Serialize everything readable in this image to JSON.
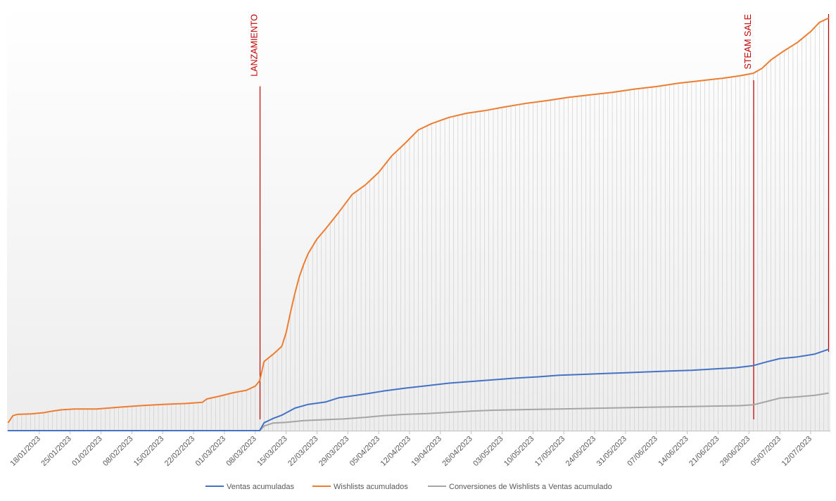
{
  "chart_data": {
    "type": "line",
    "title": "",
    "xlabel": "",
    "ylabel": "",
    "x_start": "2023-01-11",
    "x_end": "2023-07-16",
    "ylim": [
      0,
      1
    ],
    "x_tick_labels": [
      "18/01/2023",
      "25/01/2023",
      "01/02/2023",
      "08/02/2023",
      "15/02/2023",
      "22/02/2023",
      "01/03/2023",
      "08/03/2023",
      "15/03/2023",
      "22/03/2023",
      "29/03/2023",
      "05/04/2023",
      "12/04/2023",
      "19/04/2023",
      "26/04/2023",
      "03/05/2023",
      "10/05/2023",
      "17/05/2023",
      "24/05/2023",
      "31/05/2023",
      "07/06/2023",
      "14/06/2023",
      "21/06/2023",
      "28/06/2023",
      "05/07/2023",
      "12/07/2023"
    ],
    "grid": "vertical dropline per day",
    "legend_position": "bottom",
    "series": [
      {
        "name": "Ventas acumuladas",
        "color": "#4472c4",
        "points": [
          [
            "2023-01-11",
            0
          ],
          [
            "2023-03-09",
            0
          ],
          [
            "2023-03-10",
            0.019
          ],
          [
            "2023-03-12",
            0.029
          ],
          [
            "2023-03-14",
            0.037
          ],
          [
            "2023-03-17",
            0.054
          ],
          [
            "2023-03-20",
            0.063
          ],
          [
            "2023-03-24",
            0.069
          ],
          [
            "2023-03-27",
            0.079
          ],
          [
            "2023-04-02",
            0.088
          ],
          [
            "2023-04-06",
            0.095
          ],
          [
            "2023-04-11",
            0.102
          ],
          [
            "2023-04-16",
            0.108
          ],
          [
            "2023-04-21",
            0.114
          ],
          [
            "2023-04-26",
            0.118
          ],
          [
            "2023-05-01",
            0.122
          ],
          [
            "2023-05-06",
            0.126
          ],
          [
            "2023-05-11",
            0.129
          ],
          [
            "2023-05-16",
            0.133
          ],
          [
            "2023-05-21",
            0.135
          ],
          [
            "2023-05-26",
            0.137
          ],
          [
            "2023-05-31",
            0.139
          ],
          [
            "2023-06-05",
            0.141
          ],
          [
            "2023-06-10",
            0.143
          ],
          [
            "2023-06-15",
            0.145
          ],
          [
            "2023-06-20",
            0.148
          ],
          [
            "2023-06-25",
            0.151
          ],
          [
            "2023-06-29",
            0.156
          ],
          [
            "2023-07-02",
            0.165
          ],
          [
            "2023-07-05",
            0.173
          ],
          [
            "2023-07-09",
            0.177
          ],
          [
            "2023-07-13",
            0.184
          ],
          [
            "2023-07-16",
            0.195
          ]
        ]
      },
      {
        "name": "Wishlists acumulados",
        "color": "#ed7d31",
        "points": [
          [
            "2023-01-11",
            0.02
          ],
          [
            "2023-01-12",
            0.036
          ],
          [
            "2023-01-13",
            0.039
          ],
          [
            "2023-01-16",
            0.04
          ],
          [
            "2023-01-19",
            0.043
          ],
          [
            "2023-01-21",
            0.047
          ],
          [
            "2023-01-23",
            0.05
          ],
          [
            "2023-01-26",
            0.052
          ],
          [
            "2023-01-31",
            0.052
          ],
          [
            "2023-02-05",
            0.056
          ],
          [
            "2023-02-10",
            0.06
          ],
          [
            "2023-02-15",
            0.063
          ],
          [
            "2023-02-20",
            0.065
          ],
          [
            "2023-02-24",
            0.068
          ],
          [
            "2023-02-25",
            0.076
          ],
          [
            "2023-02-28",
            0.083
          ],
          [
            "2023-03-03",
            0.091
          ],
          [
            "2023-03-06",
            0.097
          ],
          [
            "2023-03-08",
            0.107
          ],
          [
            "2023-03-09",
            0.12
          ],
          [
            "2023-03-10",
            0.166
          ],
          [
            "2023-03-12",
            0.183
          ],
          [
            "2023-03-14",
            0.202
          ],
          [
            "2023-03-15",
            0.235
          ],
          [
            "2023-03-16",
            0.285
          ],
          [
            "2023-03-17",
            0.33
          ],
          [
            "2023-03-18",
            0.37
          ],
          [
            "2023-03-19",
            0.4
          ],
          [
            "2023-03-20",
            0.425
          ],
          [
            "2023-03-22",
            0.46
          ],
          [
            "2023-03-24",
            0.485
          ],
          [
            "2023-03-27",
            0.525
          ],
          [
            "2023-03-30",
            0.567
          ],
          [
            "2023-04-02",
            0.59
          ],
          [
            "2023-04-05",
            0.62
          ],
          [
            "2023-04-08",
            0.66
          ],
          [
            "2023-04-11",
            0.69
          ],
          [
            "2023-04-14",
            0.722
          ],
          [
            "2023-04-17",
            0.737
          ],
          [
            "2023-04-21",
            0.752
          ],
          [
            "2023-04-25",
            0.762
          ],
          [
            "2023-04-29",
            0.768
          ],
          [
            "2023-05-03",
            0.776
          ],
          [
            "2023-05-08",
            0.785
          ],
          [
            "2023-05-13",
            0.792
          ],
          [
            "2023-05-18",
            0.8
          ],
          [
            "2023-05-23",
            0.806
          ],
          [
            "2023-05-28",
            0.812
          ],
          [
            "2023-06-02",
            0.82
          ],
          [
            "2023-06-07",
            0.826
          ],
          [
            "2023-06-12",
            0.834
          ],
          [
            "2023-06-17",
            0.84
          ],
          [
            "2023-06-22",
            0.846
          ],
          [
            "2023-06-26",
            0.852
          ],
          [
            "2023-06-29",
            0.858
          ],
          [
            "2023-07-01",
            0.87
          ],
          [
            "2023-07-03",
            0.89
          ],
          [
            "2023-07-06",
            0.912
          ],
          [
            "2023-07-09",
            0.932
          ],
          [
            "2023-07-12",
            0.958
          ],
          [
            "2023-07-14",
            0.98
          ],
          [
            "2023-07-16",
            0.99
          ]
        ]
      },
      {
        "name": "Conversiones de Wishlists a Ventas acumulado",
        "color": "#a5a5a5",
        "points": [
          [
            "2023-01-11",
            0
          ],
          [
            "2023-03-09",
            0
          ],
          [
            "2023-03-10",
            0.011
          ],
          [
            "2023-03-12",
            0.018
          ],
          [
            "2023-03-15",
            0.02
          ],
          [
            "2023-03-19",
            0.024
          ],
          [
            "2023-03-23",
            0.026
          ],
          [
            "2023-03-28",
            0.028
          ],
          [
            "2023-04-02",
            0.032
          ],
          [
            "2023-04-06",
            0.036
          ],
          [
            "2023-04-11",
            0.039
          ],
          [
            "2023-04-16",
            0.041
          ],
          [
            "2023-04-21",
            0.044
          ],
          [
            "2023-04-26",
            0.047
          ],
          [
            "2023-05-01",
            0.049
          ],
          [
            "2023-05-06",
            0.05
          ],
          [
            "2023-05-11",
            0.051
          ],
          [
            "2023-05-16",
            0.052
          ],
          [
            "2023-05-21",
            0.053
          ],
          [
            "2023-05-26",
            0.054
          ],
          [
            "2023-05-31",
            0.055
          ],
          [
            "2023-06-05",
            0.056
          ],
          [
            "2023-06-10",
            0.057
          ],
          [
            "2023-06-15",
            0.058
          ],
          [
            "2023-06-20",
            0.059
          ],
          [
            "2023-06-26",
            0.06
          ],
          [
            "2023-06-29",
            0.062
          ],
          [
            "2023-07-02",
            0.07
          ],
          [
            "2023-07-05",
            0.078
          ],
          [
            "2023-07-09",
            0.081
          ],
          [
            "2023-07-13",
            0.085
          ],
          [
            "2023-07-16",
            0.09
          ]
        ]
      }
    ],
    "annotations": [
      {
        "label": "LANZAMIENTO",
        "x": "2023-03-09",
        "color": "#c00000"
      },
      {
        "label": "STEAM SALE",
        "x": "2023-06-29",
        "color": "#c00000"
      },
      {
        "label": "",
        "x": "2023-07-16",
        "color": "#c00000"
      }
    ]
  }
}
